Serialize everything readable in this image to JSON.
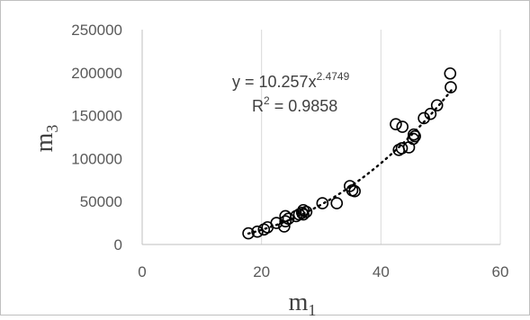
{
  "chart_data": {
    "type": "scatter",
    "title": "",
    "xlabel": {
      "base": "m",
      "sub": "1"
    },
    "ylabel": {
      "base": "m",
      "sub": "3"
    },
    "xlim": [
      0,
      60
    ],
    "ylim": [
      0,
      250000
    ],
    "xticks": [
      0,
      20,
      40,
      60
    ],
    "yticks": [
      0,
      50000,
      100000,
      150000,
      200000,
      250000
    ],
    "xtick_labels": [
      "0",
      "20",
      "40",
      "60"
    ],
    "ytick_labels": [
      "0",
      "50000",
      "100000",
      "150000",
      "200000",
      "250000"
    ],
    "grid": {
      "vertical": true,
      "horizontal": false
    },
    "legend": "none",
    "marker": "open-circle",
    "colors": {
      "marker": "#000000",
      "trendline": "#000000",
      "grid": "#d9d9d9",
      "frame": "#bfbfbf"
    },
    "trendline": {
      "type": "power",
      "coefficient": 10.257,
      "exponent": 2.4749,
      "style": "dotted",
      "x_range": [
        17.8,
        51.8
      ]
    },
    "annotation": {
      "equation_base": "y = 10.257x",
      "equation_exponent": "2.4749",
      "r_squared_prefix": "R",
      "r_squared_sup": "2",
      "r_squared_value": " = 0.9858"
    },
    "series": [
      {
        "points": [
          [
            17.8,
            13000
          ],
          [
            19.3,
            15000
          ],
          [
            20.4,
            17500
          ],
          [
            21.0,
            20000
          ],
          [
            22.5,
            25000
          ],
          [
            23.8,
            21000
          ],
          [
            24.0,
            27000
          ],
          [
            24.0,
            33000
          ],
          [
            24.5,
            30000
          ],
          [
            25.8,
            33000
          ],
          [
            26.3,
            35000
          ],
          [
            26.8,
            37000
          ],
          [
            27.0,
            40000
          ],
          [
            27.5,
            38000
          ],
          [
            27.0,
            35000
          ],
          [
            30.2,
            48000
          ],
          [
            32.6,
            48000
          ],
          [
            34.8,
            68000
          ],
          [
            35.2,
            63000
          ],
          [
            35.6,
            62000
          ],
          [
            42.5,
            140000
          ],
          [
            43.0,
            110000
          ],
          [
            43.5,
            112000
          ],
          [
            43.6,
            137000
          ],
          [
            44.7,
            113000
          ],
          [
            45.4,
            123000
          ],
          [
            45.5,
            128000
          ],
          [
            45.7,
            126000
          ],
          [
            47.2,
            147000
          ],
          [
            48.3,
            152000
          ],
          [
            49.4,
            162000
          ],
          [
            51.6,
            199000
          ],
          [
            51.7,
            183000
          ]
        ]
      }
    ]
  }
}
